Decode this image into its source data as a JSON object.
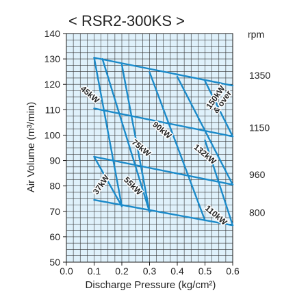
{
  "chart_data": {
    "type": "line",
    "title": "< RSR2-300KS >",
    "xlabel": "Discharge Pressure (kg/cm²)",
    "ylabel": "Air Volume (m³/min)",
    "y2label": "rpm",
    "xlim": [
      0.0,
      0.6
    ],
    "ylim": [
      50,
      140
    ],
    "xticks": [
      0.0,
      0.1,
      0.2,
      0.3,
      0.4,
      0.5,
      0.6
    ],
    "xtick_labels": [
      "0.0",
      "0.1",
      "0.2",
      "0.3",
      "0.4",
      "0.5",
      "0.6"
    ],
    "yticks": [
      50,
      60,
      70,
      80,
      90,
      100,
      110,
      120,
      130,
      140
    ],
    "ytick_labels": [
      "50",
      "60",
      "70",
      "80",
      "90",
      "100",
      "110",
      "120",
      "130",
      "140"
    ],
    "grid": true,
    "colors": {
      "line": "#1b8ac9",
      "panel": "#dff1fb",
      "grid": "#1a1a1a"
    },
    "rpm_series": [
      {
        "name": "1350",
        "x": [
          0.1,
          0.6
        ],
        "y": [
          130.5,
          119.5
        ]
      },
      {
        "name": "1150",
        "x": [
          0.1,
          0.6
        ],
        "y": [
          110.5,
          99.5
        ]
      },
      {
        "name": "960",
        "x": [
          0.1,
          0.6
        ],
        "y": [
          91.5,
          80.5
        ]
      },
      {
        "name": "800",
        "x": [
          0.1,
          0.6
        ],
        "y": [
          74.5,
          64.5
        ]
      }
    ],
    "power_series": [
      {
        "name": "37kW",
        "x": [
          0.1,
          0.2
        ],
        "y": [
          91.5,
          72.0
        ]
      },
      {
        "name": "45kW",
        "x": [
          0.1,
          0.2
        ],
        "y": [
          130.5,
          72.0
        ]
      },
      {
        "name": "55kW",
        "x": [
          0.13,
          0.3
        ],
        "y": [
          130.0,
          69.8
        ]
      },
      {
        "name": "75kW",
        "x": [
          0.2,
          0.3
        ],
        "y": [
          127.7,
          69.8
        ]
      },
      {
        "name": "90kW",
        "x": [
          0.3,
          0.5
        ],
        "y": [
          124.8,
          66.4
        ]
      },
      {
        "name": "132kW",
        "x": [
          0.4,
          0.6
        ],
        "y": [
          123.0,
          80.5
        ]
      },
      {
        "name": "110kW",
        "x": [
          0.5,
          0.6
        ],
        "y": [
          98.0,
          64.5
        ]
      },
      {
        "name": "150kW & over",
        "x": [
          0.5,
          0.6
        ],
        "y": [
          121.3,
          99.5
        ]
      }
    ],
    "power_labels": [
      {
        "name": "45kW",
        "lines": [
          "45kW"
        ],
        "x": 0.085,
        "y": 116,
        "angle": 40
      },
      {
        "name": "150kW & over",
        "lines": [
          "150kW",
          "& over"
        ],
        "x": 0.55,
        "y": 114,
        "angle": -55
      },
      {
        "name": "90kW",
        "lines": [
          "90kW"
        ],
        "x": 0.345,
        "y": 102,
        "angle": 40
      },
      {
        "name": "75kW",
        "lines": [
          "75kW"
        ],
        "x": 0.27,
        "y": 95,
        "angle": 40
      },
      {
        "name": "132kW",
        "lines": [
          "132kW"
        ],
        "x": 0.5,
        "y": 92.5,
        "angle": 40
      },
      {
        "name": "37kW",
        "lines": [
          "37kW"
        ],
        "x": 0.125,
        "y": 80.5,
        "angle": -55
      },
      {
        "name": "55kW",
        "lines": [
          "55kW"
        ],
        "x": 0.24,
        "y": 80,
        "angle": 45
      },
      {
        "name": "110kW",
        "lines": [
          "110kW"
        ],
        "x": 0.54,
        "y": 68.5,
        "angle": 40
      }
    ],
    "rpm_labels": [
      {
        "text": "1350",
        "y": 123.5
      },
      {
        "text": "1150",
        "y": 103.0
      },
      {
        "text": "960",
        "y": 84.5
      },
      {
        "text": "800",
        "y": 69.5
      }
    ]
  }
}
